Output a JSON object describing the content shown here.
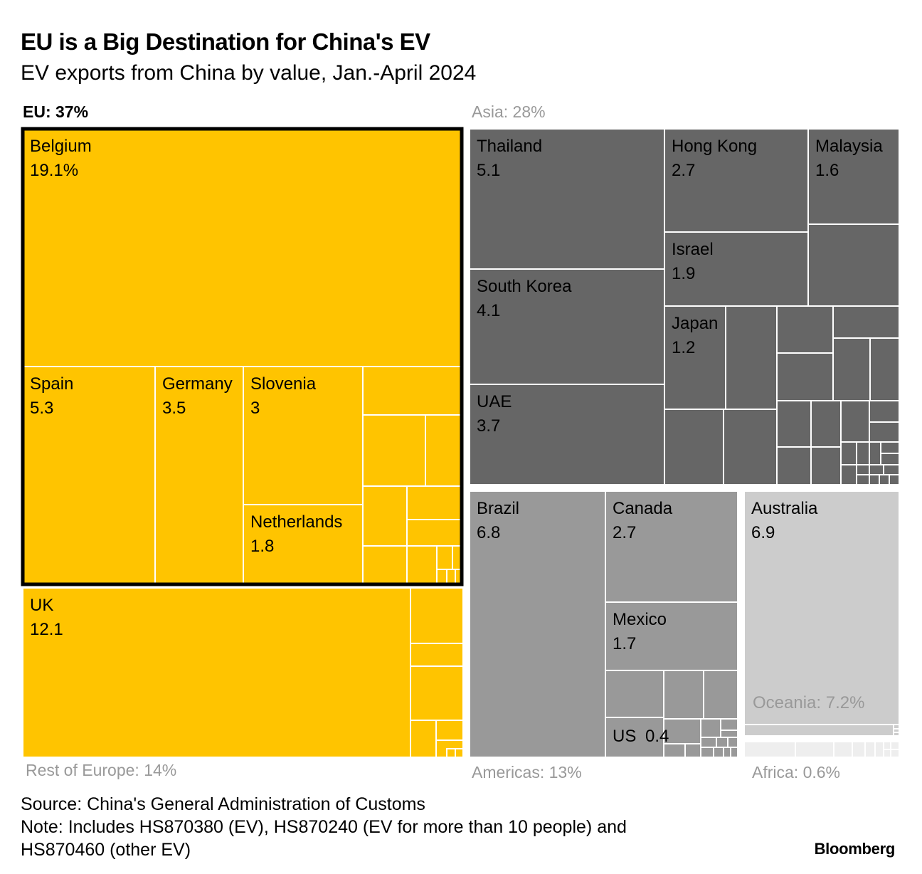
{
  "header": {
    "title": "EU is a Big Destination for China's EV",
    "subtitle": "EV exports from China by value, Jan.-April 2024"
  },
  "footer": {
    "source": "Source: China's General Administration of Customs",
    "note_line1": "Note: Includes HS870380 (EV), HS870240 (EV for more than 10 people) and",
    "note_line2": "HS870460 (other EV)",
    "brand": "Bloomberg"
  },
  "colors": {
    "europe": "#FFC400",
    "asia": "#666666",
    "americas": "#999999",
    "oceania": "#CCCCCC",
    "africa": "#EEEEEE",
    "region_label": "#999999",
    "divider": "#ffffff",
    "eu_outline": "#000000"
  },
  "chart_data": {
    "type": "treemap",
    "title": "EU is a Big Destination for China's EV",
    "subtitle": "EV exports from China by value, Jan.-April 2024",
    "unit": "% share of China's EV export value",
    "groups": [
      {
        "name": "EU",
        "label": "EU: 37%",
        "share": 37,
        "items": [
          {
            "name": "Belgium",
            "value": 19.1,
            "label": "19.1%"
          },
          {
            "name": "Spain",
            "value": 5.3,
            "label": "5.3"
          },
          {
            "name": "Germany",
            "value": 3.5,
            "label": "3.5"
          },
          {
            "name": "Slovenia",
            "value": 3,
            "label": "3"
          },
          {
            "name": "Netherlands",
            "value": 1.8,
            "label": "1.8"
          }
        ]
      },
      {
        "name": "Rest of Europe",
        "label": "Rest of Europe: 14%",
        "share": 14,
        "items": [
          {
            "name": "UK",
            "value": 12.1,
            "label": "12.1"
          }
        ]
      },
      {
        "name": "Asia",
        "label": "Asia: 28%",
        "share": 28,
        "items": [
          {
            "name": "Thailand",
            "value": 5.1,
            "label": "5.1"
          },
          {
            "name": "South Korea",
            "value": 4.1,
            "label": "4.1"
          },
          {
            "name": "UAE",
            "value": 3.7,
            "label": "3.7"
          },
          {
            "name": "Hong Kong",
            "value": 2.7,
            "label": "2.7"
          },
          {
            "name": "Israel",
            "value": 1.9,
            "label": "1.9"
          },
          {
            "name": "Malaysia",
            "value": 1.6,
            "label": "1.6"
          },
          {
            "name": "Japan",
            "value": 1.2,
            "label": "1.2"
          }
        ]
      },
      {
        "name": "Americas",
        "label": "Americas: 13%",
        "share": 13,
        "items": [
          {
            "name": "Brazil",
            "value": 6.8,
            "label": "6.8"
          },
          {
            "name": "Canada",
            "value": 2.7,
            "label": "2.7"
          },
          {
            "name": "Mexico",
            "value": 1.7,
            "label": "1.7"
          },
          {
            "name": "US",
            "value": 0.4,
            "label": "0.4"
          }
        ]
      },
      {
        "name": "Oceania",
        "label": "Oceania: 7.2%",
        "share": 7.2,
        "items": [
          {
            "name": "Australia",
            "value": 6.9,
            "label": "6.9"
          }
        ]
      },
      {
        "name": "Africa",
        "label": "Africa: 0.6%",
        "share": 0.6,
        "items": []
      }
    ]
  }
}
